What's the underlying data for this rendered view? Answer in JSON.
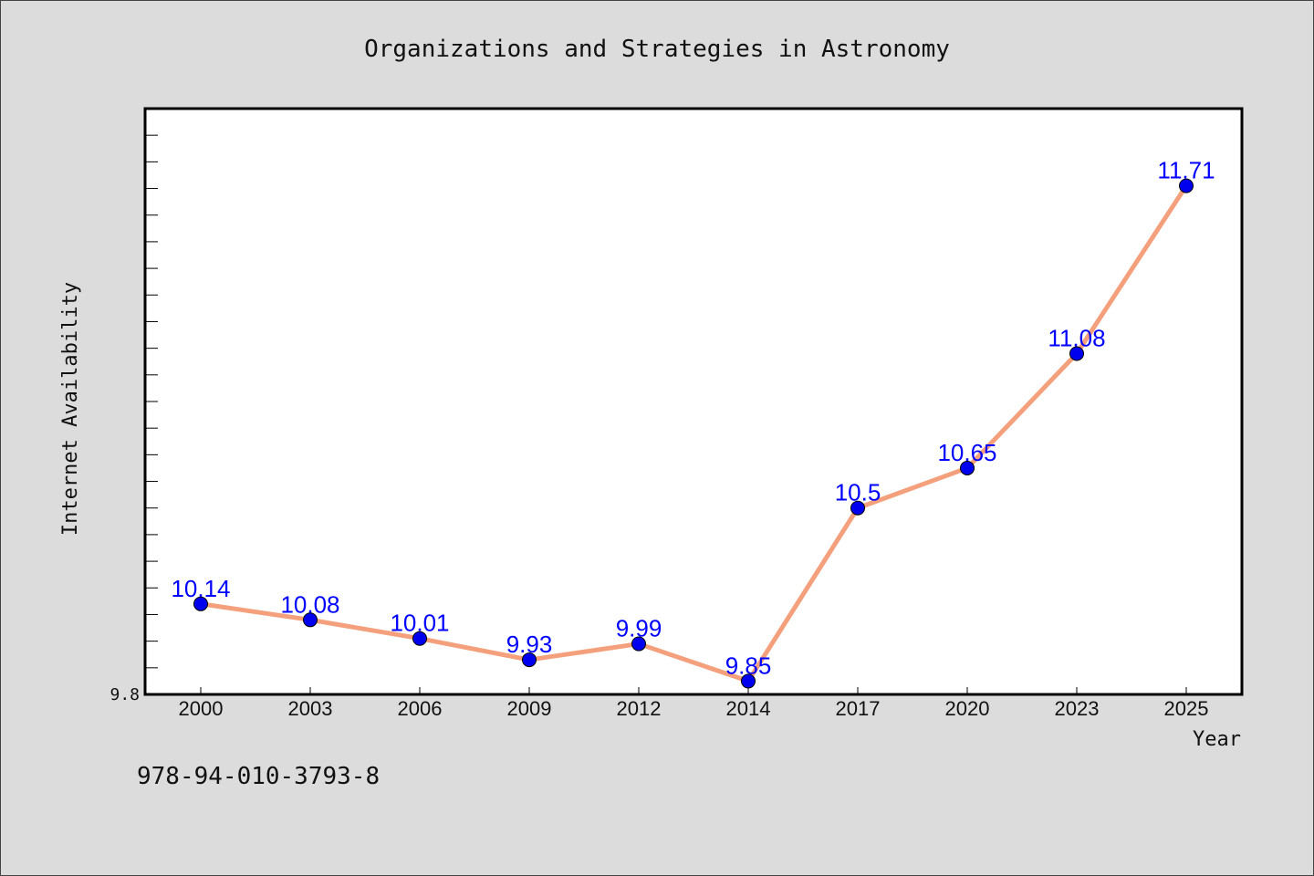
{
  "chart_data": {
    "type": "line",
    "title": "Organizations and Strategies in Astronomy",
    "xlabel": "Year",
    "ylabel": "Internet Availability",
    "categories": [
      "2000",
      "2003",
      "2006",
      "2009",
      "2012",
      "2014",
      "2017",
      "2020",
      "2023",
      "2025"
    ],
    "series": [
      {
        "values": [
          10.14,
          10.08,
          10.01,
          9.93,
          9.99,
          9.85,
          10.5,
          10.65,
          11.08,
          11.71
        ]
      }
    ],
    "data_labels": [
      "10.14",
      "10.08",
      "10.01",
      "9.93",
      "9.99",
      "9.85",
      "10.5",
      "10.65",
      "11.08",
      "11.71"
    ],
    "y_tick_labels": [
      "9.8"
    ],
    "ylim": [
      9.8,
      12.0
    ],
    "y_minor_tick_step": 0.1,
    "grid": false,
    "legend": "none",
    "colors": {
      "line": "#f4a07c",
      "marker": "#0000ee",
      "marker_edge": "#000000",
      "data_label": "#0000ff",
      "plot_background": "#ffffff",
      "figure_background": "#dcdcdc",
      "axes_edge": "#000000"
    }
  },
  "footer": {
    "isbn": "978-94-010-3793-8"
  }
}
